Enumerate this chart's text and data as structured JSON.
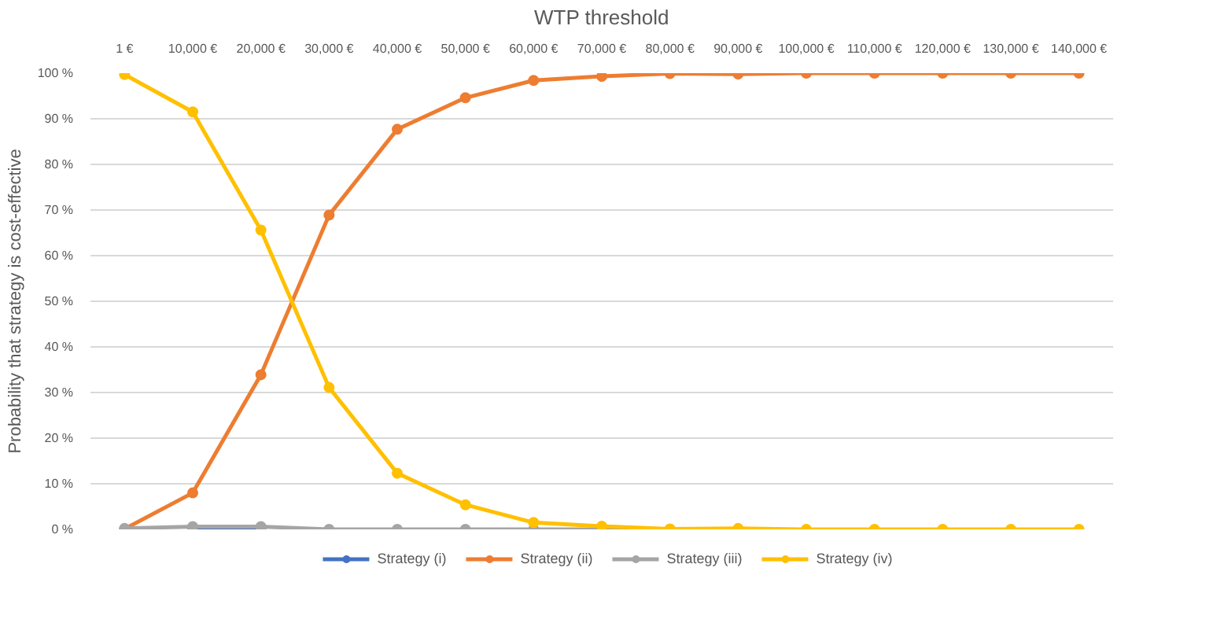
{
  "chart_data": {
    "type": "line",
    "xlabel": "WTP threshold",
    "ylabel": "Probability that strategy is cost-effective",
    "categories": [
      "1 €",
      "10,000 €",
      "20,000 €",
      "30,000 €",
      "40,000 €",
      "50,000 €",
      "60,000 €",
      "70,000 €",
      "80,000 €",
      "90,000 €",
      "100,000 €",
      "110,000 €",
      "120,000 €",
      "130,000 €",
      "140,000 €"
    ],
    "series": [
      {
        "name": "Strategy (i)",
        "color": "#4472c4",
        "values": [
          null,
          0,
          0,
          null,
          null,
          null,
          null,
          null,
          null,
          null,
          null,
          null,
          null,
          null,
          null
        ]
      },
      {
        "name": "Strategy (ii)",
        "color": "#ed7d31",
        "values": [
          0.1,
          8.0,
          33.9,
          68.9,
          87.7,
          94.6,
          98.4,
          99.3,
          99.9,
          99.8,
          100,
          100,
          100,
          100,
          100
        ]
      },
      {
        "name": "Strategy (iii)",
        "color": "#a5a5a5",
        "values": [
          0.2,
          0.6,
          0.6,
          0,
          0,
          0,
          0,
          0,
          0,
          null,
          null,
          null,
          null,
          null,
          null
        ]
      },
      {
        "name": "Strategy (iv)",
        "color": "#ffc000",
        "values": [
          99.7,
          91.5,
          65.6,
          31.1,
          12.3,
          5.4,
          1.5,
          0.7,
          0.1,
          0.2,
          0,
          0,
          0,
          0,
          0
        ]
      }
    ],
    "ylim": [
      0,
      100
    ],
    "yticks": [
      {
        "value": 0,
        "label": "0 %"
      },
      {
        "value": 10,
        "label": "10 %"
      },
      {
        "value": 20,
        "label": "20 %"
      },
      {
        "value": 30,
        "label": "30 %"
      },
      {
        "value": 40,
        "label": "40 %"
      },
      {
        "value": 50,
        "label": "50 %"
      },
      {
        "value": 60,
        "label": "60 %"
      },
      {
        "value": 70,
        "label": "70 %"
      },
      {
        "value": 80,
        "label": "80 %"
      },
      {
        "value": 90,
        "label": "90 %"
      },
      {
        "value": 100,
        "label": "100 %"
      }
    ],
    "grid": "y",
    "legend": "bottom",
    "marker": "circle",
    "line_style": "solid"
  }
}
